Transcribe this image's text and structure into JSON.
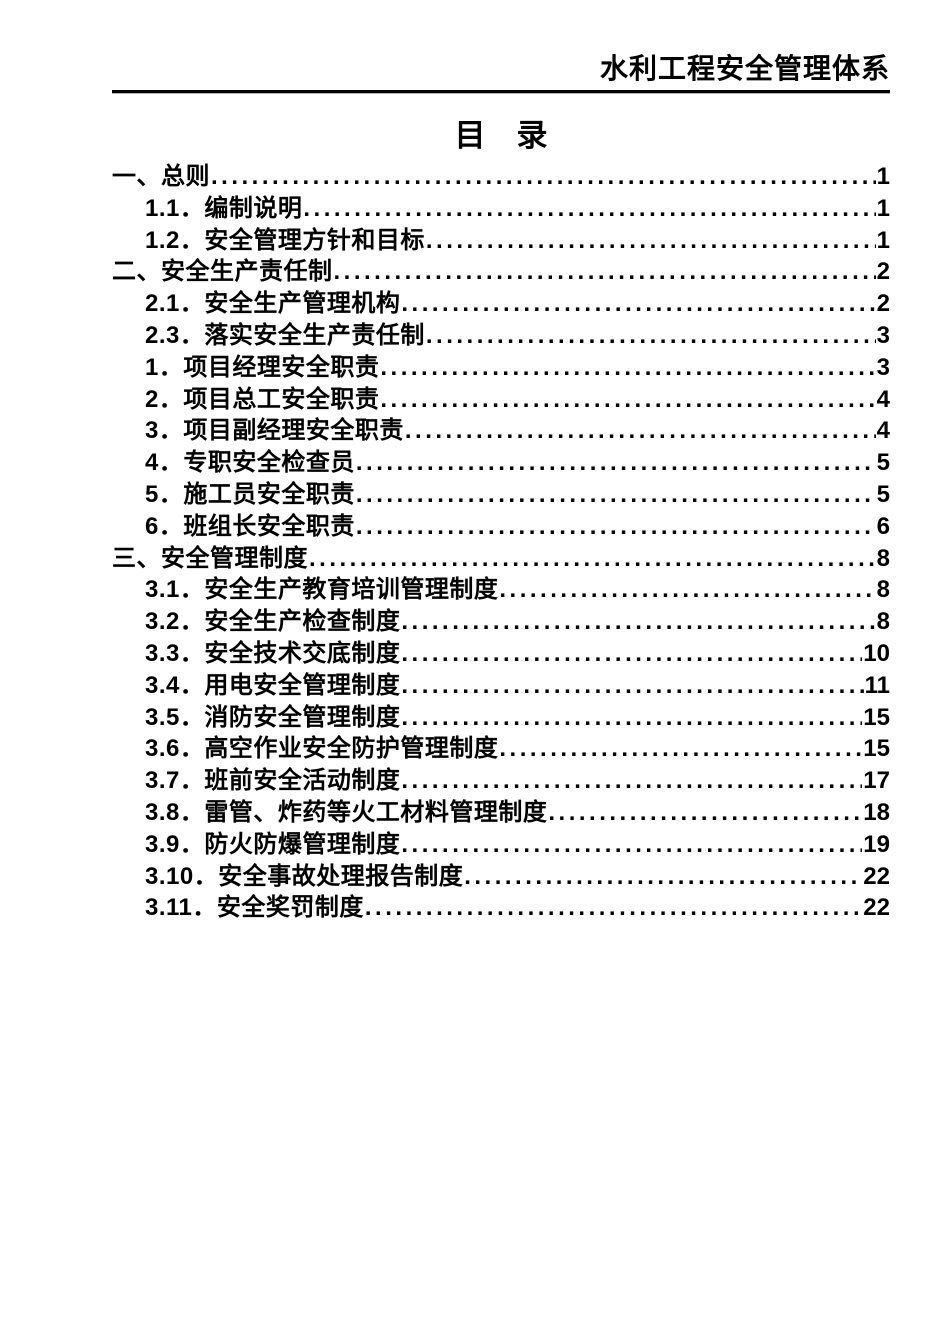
{
  "header": {
    "title": "水利工程安全管理体系"
  },
  "toc": {
    "title": "目　录",
    "entries": [
      {
        "level": 1,
        "label": "一、总则",
        "page": "1"
      },
      {
        "level": 2,
        "label": "1.1．编制说明",
        "page": "1"
      },
      {
        "level": 2,
        "label": "1.2．安全管理方针和目标",
        "page": "1"
      },
      {
        "level": 1,
        "label": "二、安全生产责任制",
        "page": "2"
      },
      {
        "level": 2,
        "label": "2.1．安全生产管理机构",
        "page": "2"
      },
      {
        "level": 2,
        "label": "2.3．落实安全生产责任制",
        "page": "3"
      },
      {
        "level": 2,
        "label": "1．项目经理安全职责",
        "page": "3"
      },
      {
        "level": 2,
        "label": "2．项目总工安全职责",
        "page": "4"
      },
      {
        "level": 2,
        "label": "3．项目副经理安全职责",
        "page": "4"
      },
      {
        "level": 2,
        "label": "4．专职安全检查员",
        "page": "5"
      },
      {
        "level": 2,
        "label": "5．施工员安全职责",
        "page": "5"
      },
      {
        "level": 2,
        "label": "6．班组长安全职责",
        "page": "6"
      },
      {
        "level": 1,
        "label": "三、安全管理制度",
        "page": "8"
      },
      {
        "level": 2,
        "label": "3.1．安全生产教育培训管理制度",
        "page": "8"
      },
      {
        "level": 2,
        "label": "3.2．安全生产检查制度",
        "page": "8"
      },
      {
        "level": 2,
        "label": "3.3．安全技术交底制度",
        "page": "10"
      },
      {
        "level": 2,
        "label": "3.4．用电安全管理制度",
        "page": "11"
      },
      {
        "level": 2,
        "label": "3.5．消防安全管理制度",
        "page": "15"
      },
      {
        "level": 2,
        "label": "3.6．高空作业安全防护管理制度",
        "page": "15"
      },
      {
        "level": 2,
        "label": "3.7．班前安全活动制度",
        "page": "17"
      },
      {
        "level": 2,
        "label": "3.8．雷管、炸药等火工材料管理制度",
        "page": "18"
      },
      {
        "level": 2,
        "label": "3.9．防火防爆管理制度",
        "page": "19"
      },
      {
        "level": 2,
        "label": "3.10．安全事故处理报告制度",
        "page": "22"
      },
      {
        "level": 2,
        "label": "3.11．安全奖罚制度",
        "page": "22"
      }
    ]
  }
}
